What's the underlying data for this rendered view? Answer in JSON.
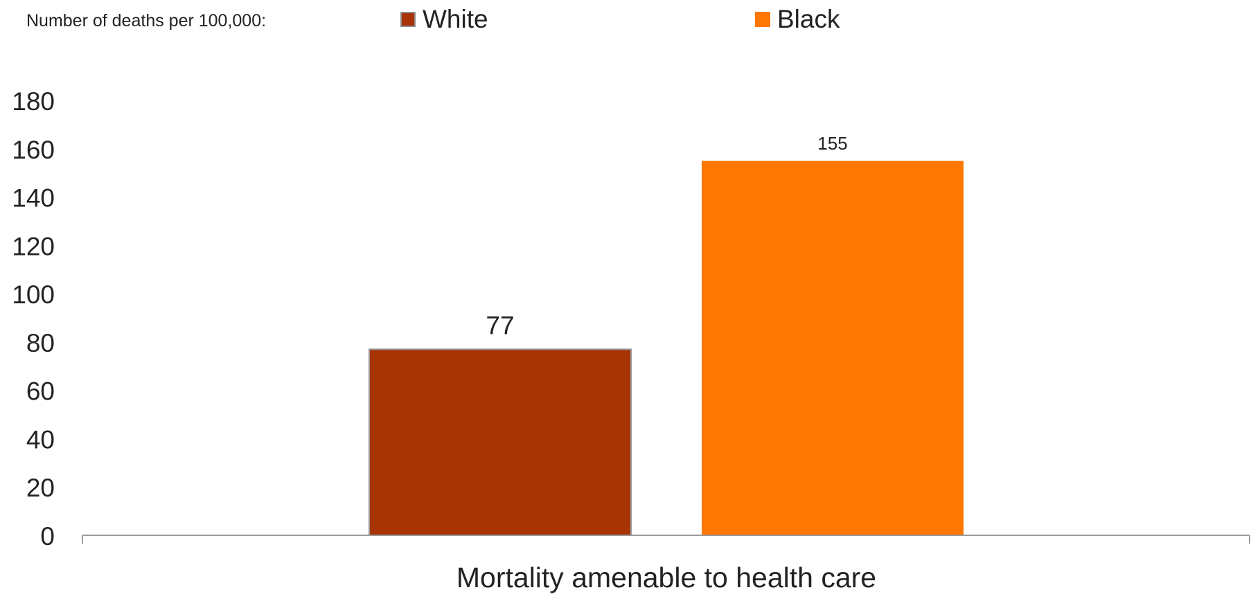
{
  "chart_data": {
    "type": "bar",
    "legend_title": "Number of deaths per 100,000:",
    "legend_placement": "top",
    "categories": [
      "Mortality amenable to health care"
    ],
    "series": [
      {
        "name": "White",
        "color": "#A83405",
        "values": [
          77
        ],
        "data_label": "77"
      },
      {
        "name": "Black",
        "color": "#FF7700",
        "values": [
          155
        ],
        "data_label": "155"
      }
    ],
    "xlabel": "",
    "ylabel": "",
    "ylim": [
      0,
      180
    ],
    "y_ticks": [
      "0",
      "20",
      "40",
      "60",
      "80",
      "100",
      "120",
      "140",
      "160",
      "180"
    ],
    "grid": false
  }
}
